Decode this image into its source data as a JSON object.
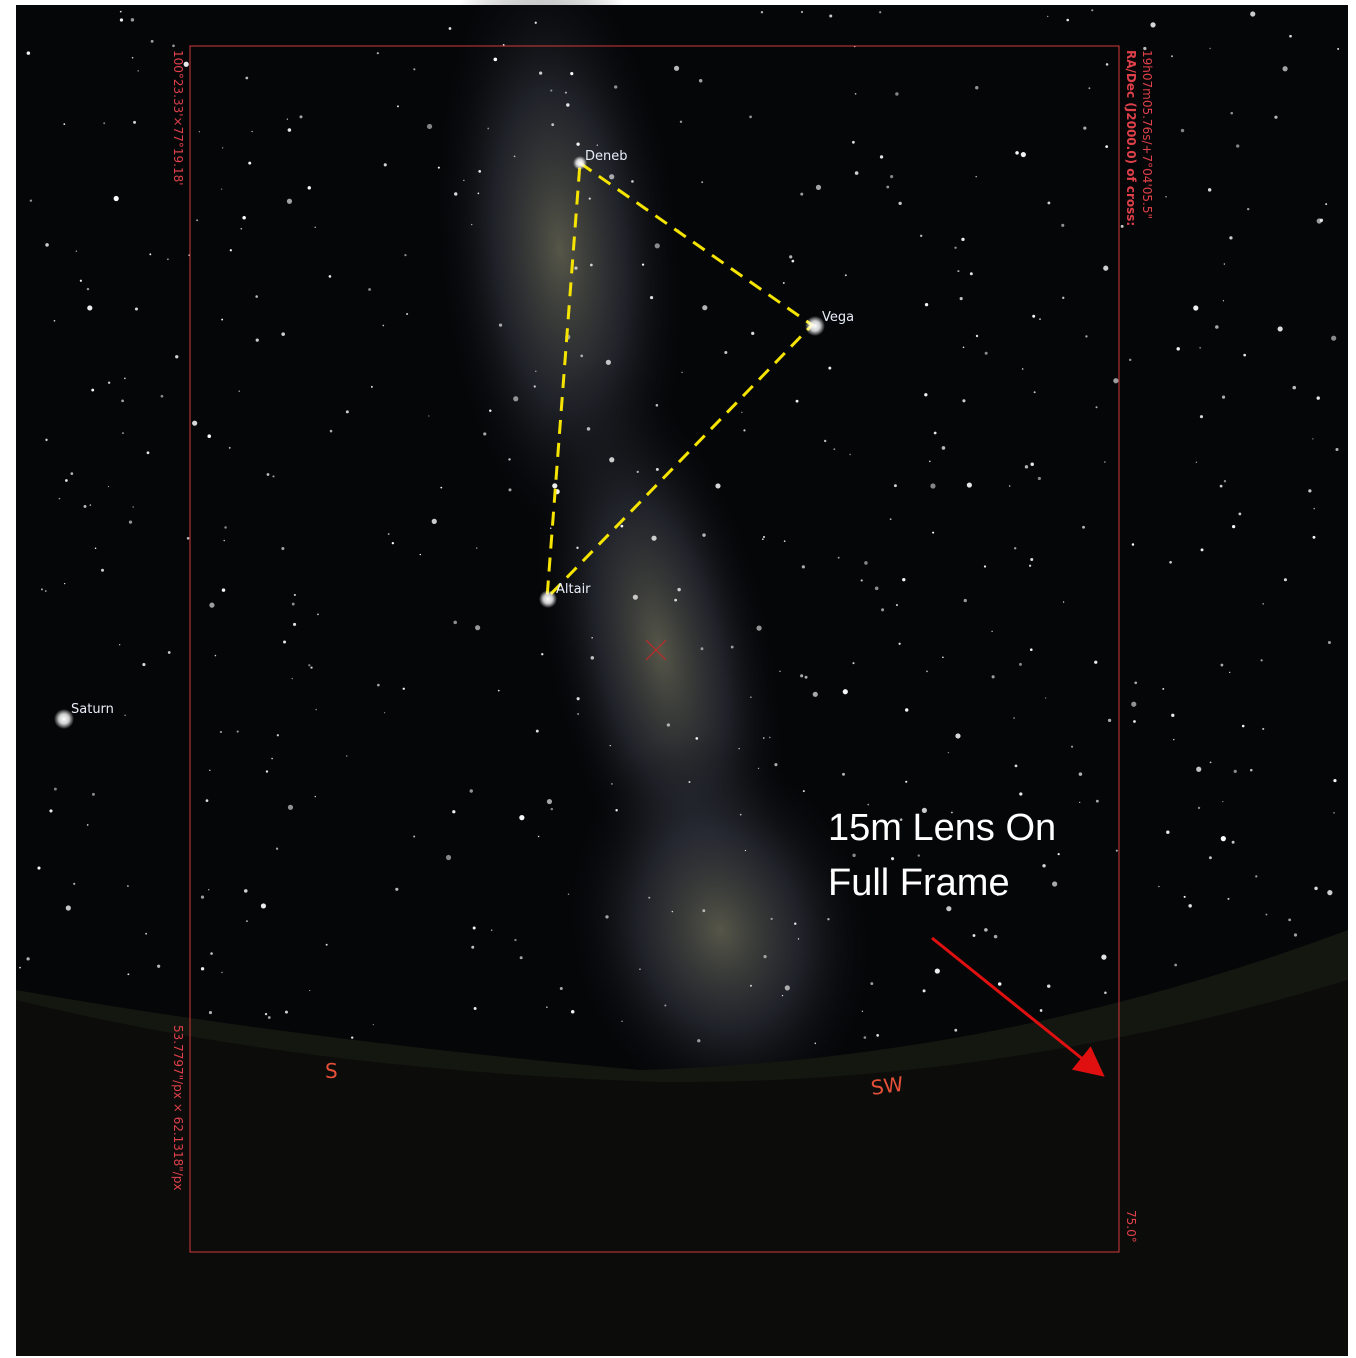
{
  "sky_labels": {
    "stars": [
      "Deneb",
      "Vega",
      "Altair"
    ],
    "planet": "Saturn",
    "compass": [
      "S",
      "SW"
    ]
  },
  "frame": {
    "fov": "100°23.33'×77°19.18'",
    "ra_dec_title": "RA/Dec (J2000.0) of cross:",
    "ra_dec": "19h07m05.76s/+7°04'05.5\"",
    "scale": "53.7797\"/px × 62.1318\"/px",
    "rotation": "75.0°"
  },
  "annotation": [
    "15m Lens On",
    "Full Frame"
  ]
}
